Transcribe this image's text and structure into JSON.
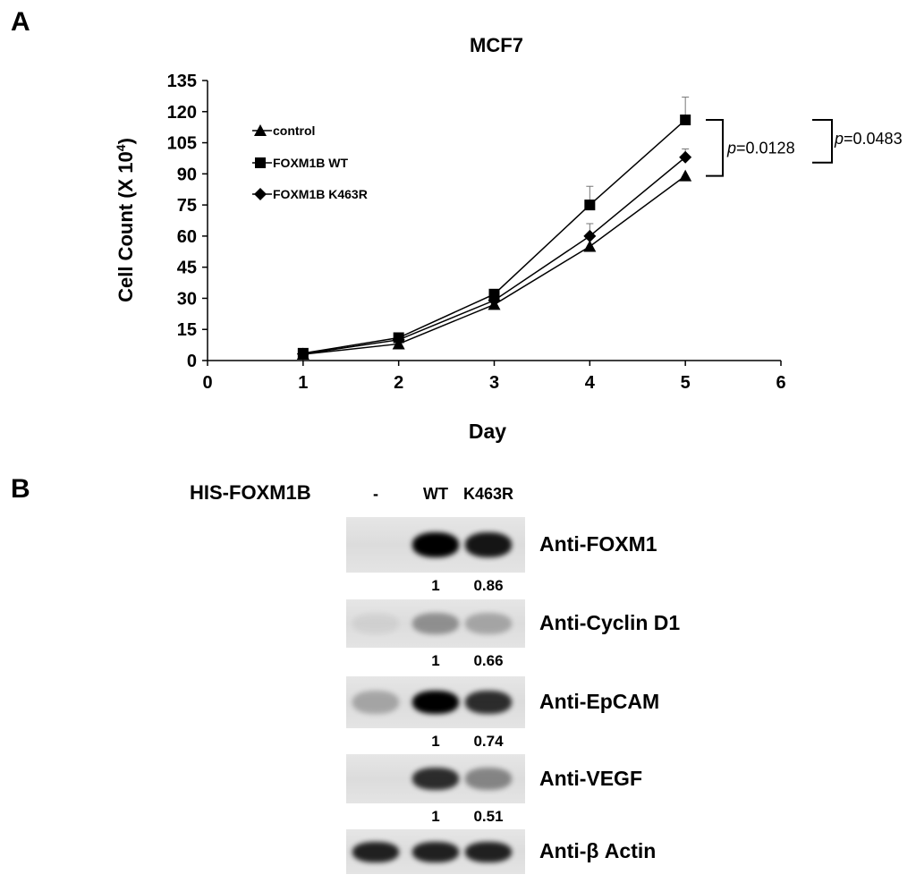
{
  "panels": {
    "a_label": "A",
    "b_label": "B"
  },
  "chart_data": {
    "type": "line",
    "title": "MCF7",
    "xlabel": "Day",
    "ylabel_main": "Cell Count (X 10",
    "ylabel_sup": "4",
    "ylabel_close": ")",
    "xlim": [
      0,
      6
    ],
    "ylim": [
      0,
      135
    ],
    "xticks": [
      0,
      1,
      2,
      3,
      4,
      5,
      6
    ],
    "yticks": [
      0,
      15,
      30,
      45,
      60,
      75,
      90,
      105,
      120,
      135
    ],
    "x": [
      1,
      2,
      3,
      4,
      5
    ],
    "series": [
      {
        "name": "control",
        "marker": "triangle",
        "values": [
          3,
          8,
          27,
          55,
          89
        ]
      },
      {
        "name": "FOXM1B WT",
        "marker": "square",
        "values": [
          3.5,
          11,
          32,
          75,
          116
        ],
        "errors_upper": [
          0,
          0,
          0,
          9,
          11
        ]
      },
      {
        "name": "FOXM1B K463R",
        "marker": "diamond",
        "values": [
          3.2,
          10,
          29,
          60,
          98
        ],
        "errors_upper": [
          0,
          0,
          0,
          6,
          4
        ]
      }
    ],
    "legend_position": "top-left",
    "annotations": [
      {
        "p_italic": "p",
        "rest": "=0.0128",
        "between": [
          "FOXM1B WT",
          "control"
        ]
      },
      {
        "p_italic": "p",
        "rest": "=0.0483",
        "between": [
          "FOXM1B WT",
          "FOXM1B K463R"
        ]
      }
    ]
  },
  "blot": {
    "header_label": "HIS-FOXM1B",
    "lanes": [
      "-",
      "WT",
      "K463R"
    ],
    "rows": [
      {
        "antibody": "Anti-FOXM1",
        "quant": [
          "1",
          "0.86"
        ],
        "intensity": [
          0.0,
          1.0,
          0.9
        ]
      },
      {
        "antibody": "Anti-Cyclin D1",
        "quant": [
          "1",
          "0.66"
        ],
        "intensity": [
          0.05,
          0.35,
          0.25
        ]
      },
      {
        "antibody": "Anti-EpCAM",
        "quant": [
          "1",
          "0.74"
        ],
        "intensity": [
          0.25,
          1.0,
          0.8
        ]
      },
      {
        "antibody": "Anti-VEGF",
        "quant": [
          "1",
          "0.51"
        ],
        "intensity": [
          0.0,
          0.8,
          0.4
        ]
      },
      {
        "antibody": "Anti-β Actin",
        "quant": [],
        "intensity": [
          0.85,
          0.85,
          0.85
        ]
      }
    ]
  }
}
